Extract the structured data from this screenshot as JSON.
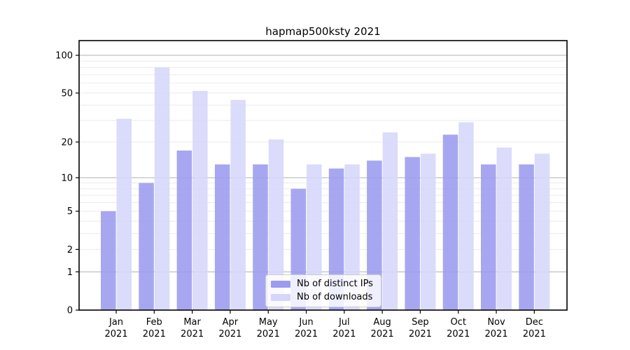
{
  "chart_data": {
    "type": "bar",
    "title": "hapmap500ksty 2021",
    "categories": [
      "Jan",
      "Feb",
      "Mar",
      "Apr",
      "May",
      "Jun",
      "Jul",
      "Aug",
      "Sep",
      "Oct",
      "Nov",
      "Dec"
    ],
    "year": "2021",
    "series": [
      {
        "name": "Nb of distinct IPs",
        "color": "#9b9bef",
        "values": [
          5,
          9,
          17,
          13,
          13,
          8,
          12,
          14,
          15,
          23,
          13,
          13
        ]
      },
      {
        "name": "Nb of downloads",
        "color": "#d6d6fa",
        "values": [
          31,
          80,
          52,
          44,
          21,
          13,
          13,
          24,
          16,
          29,
          18,
          16
        ]
      }
    ],
    "xlabel": "",
    "ylabel": "",
    "y_scale": "log1p",
    "y_ticks": [
      0,
      1,
      2,
      5,
      10,
      20,
      50,
      100
    ],
    "y_major_gridlines": [
      1,
      10,
      100
    ],
    "y_minor_gridlines": [
      2,
      3,
      4,
      5,
      6,
      7,
      8,
      9,
      20,
      30,
      40,
      50,
      60,
      70,
      80,
      90
    ],
    "ylim": [
      0,
      130
    ],
    "grid": true,
    "legend_position": "lower center",
    "colors": {
      "spine": "#000000",
      "major_grid": "#b0b0b0",
      "minor_grid": "#ebebf0",
      "tick_text": "#000000"
    }
  }
}
